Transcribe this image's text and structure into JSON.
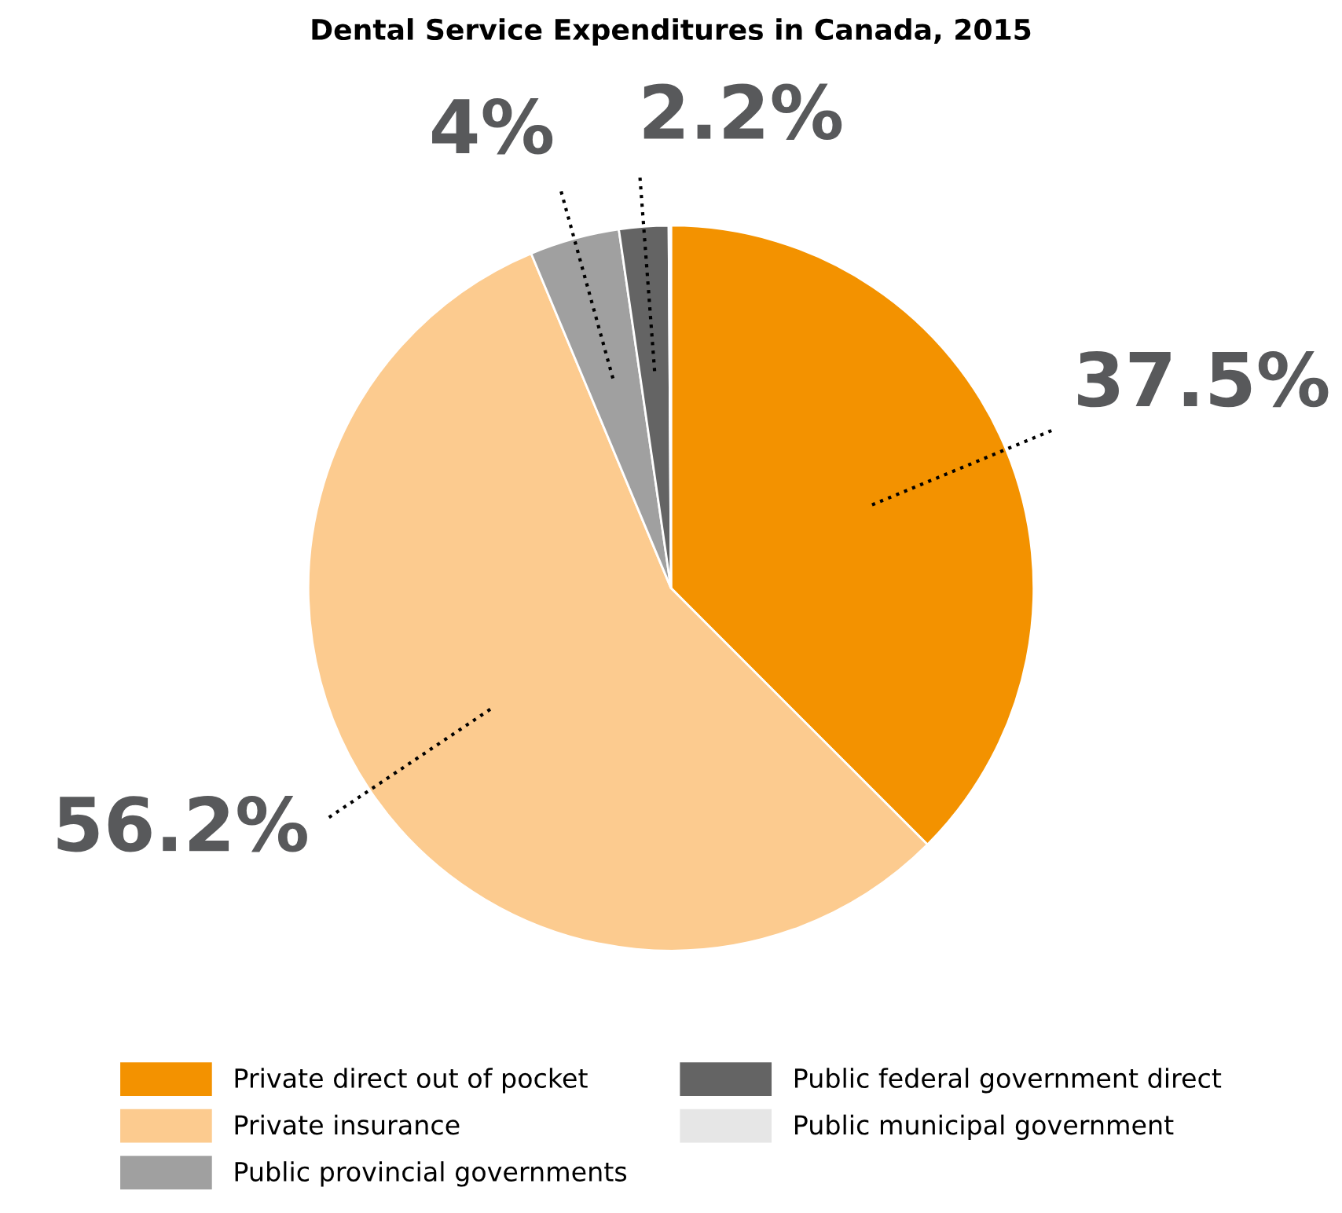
{
  "chart_data": {
    "type": "pie",
    "title": "Dental Service Expenditures in Canada, 2015",
    "categories": [
      "Private direct out of pocket",
      "Private insurance",
      "Public provincial governments",
      "Public federal government direct",
      "Public municipal government"
    ],
    "values": [
      37.5,
      56.2,
      4,
      2.2,
      0.1
    ],
    "value_labels": [
      "37.5%",
      "56.2%",
      "4%",
      "2.2%",
      null
    ],
    "colors": [
      "#f39200",
      "#fccb8f",
      "#a0a0a0",
      "#646464",
      "#e6e6e6"
    ],
    "legend": "bottom"
  }
}
